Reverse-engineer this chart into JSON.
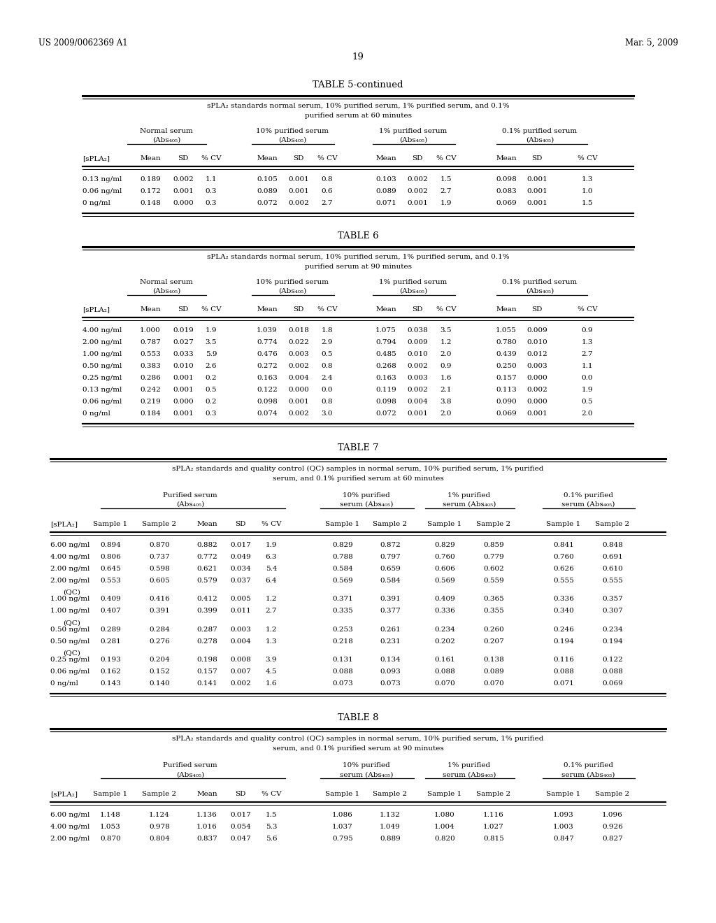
{
  "header_left": "US 2009/0062369 A1",
  "header_right": "Mar. 5, 2009",
  "page_number": "19",
  "background_color": "#ffffff",
  "table5c_title": "TABLE 5-continued",
  "table5c_subtitle1": "sPLA₂ standards normal serum, 10% purified serum, 1% purified serum, and 0.1%",
  "table5c_subtitle2": "purified serum at 60 minutes",
  "table5c_rows": [
    [
      "0.13 ng/ml",
      "0.189",
      "0.002",
      "1.1",
      "0.105",
      "0.001",
      "0.8",
      "0.103",
      "0.002",
      "1.5",
      "0.098",
      "0.001",
      "1.3"
    ],
    [
      "0.06 ng/ml",
      "0.172",
      "0.001",
      "0.3",
      "0.089",
      "0.001",
      "0.6",
      "0.089",
      "0.002",
      "2.7",
      "0.083",
      "0.001",
      "1.0"
    ],
    [
      "0 ng/ml",
      "0.148",
      "0.000",
      "0.3",
      "0.072",
      "0.002",
      "2.7",
      "0.071",
      "0.001",
      "1.9",
      "0.069",
      "0.001",
      "1.5"
    ]
  ],
  "table6_title": "TABLE 6",
  "table6_subtitle1": "sPLA₂ standards normal serum, 10% purified serum, 1% purified serum, and 0.1%",
  "table6_subtitle2": "purified serum at 90 minutes",
  "table6_rows": [
    [
      "4.00 ng/ml",
      "1.000",
      "0.019",
      "1.9",
      "1.039",
      "0.018",
      "1.8",
      "1.075",
      "0.038",
      "3.5",
      "1.055",
      "0.009",
      "0.9"
    ],
    [
      "2.00 ng/ml",
      "0.787",
      "0.027",
      "3.5",
      "0.774",
      "0.022",
      "2.9",
      "0.794",
      "0.009",
      "1.2",
      "0.780",
      "0.010",
      "1.3"
    ],
    [
      "1.00 ng/ml",
      "0.553",
      "0.033",
      "5.9",
      "0.476",
      "0.003",
      "0.5",
      "0.485",
      "0.010",
      "2.0",
      "0.439",
      "0.012",
      "2.7"
    ],
    [
      "0.50 ng/ml",
      "0.383",
      "0.010",
      "2.6",
      "0.272",
      "0.002",
      "0.8",
      "0.268",
      "0.002",
      "0.9",
      "0.250",
      "0.003",
      "1.1"
    ],
    [
      "0.25 ng/ml",
      "0.286",
      "0.001",
      "0.2",
      "0.163",
      "0.004",
      "2.4",
      "0.163",
      "0.003",
      "1.6",
      "0.157",
      "0.000",
      "0.0"
    ],
    [
      "0.13 ng/ml",
      "0.242",
      "0.001",
      "0.5",
      "0.122",
      "0.000",
      "0.0",
      "0.119",
      "0.002",
      "2.1",
      "0.113",
      "0.002",
      "1.9"
    ],
    [
      "0.06 ng/ml",
      "0.219",
      "0.000",
      "0.2",
      "0.098",
      "0.001",
      "0.8",
      "0.098",
      "0.004",
      "3.8",
      "0.090",
      "0.000",
      "0.5"
    ],
    [
      "0 ng/ml",
      "0.184",
      "0.001",
      "0.3",
      "0.074",
      "0.002",
      "3.0",
      "0.072",
      "0.001",
      "2.0",
      "0.069",
      "0.001",
      "2.0"
    ]
  ],
  "table7_title": "TABLE 7",
  "table7_subtitle1": "sPLA₂ standards and quality control (QC) samples in normal serum, 10% purified serum, 1% purified",
  "table7_subtitle2": "serum, and 0.1% purified serum at 60 minutes",
  "table7_rows": [
    [
      "6.00 ng/ml",
      "0.894",
      "0.870",
      "0.882",
      "0.017",
      "1.9",
      "0.829",
      "0.872",
      "0.829",
      "0.859",
      "0.841",
      "0.848"
    ],
    [
      "4.00 ng/ml",
      "0.806",
      "0.737",
      "0.772",
      "0.049",
      "6.3",
      "0.788",
      "0.797",
      "0.760",
      "0.779",
      "0.760",
      "0.691"
    ],
    [
      "2.00 ng/ml",
      "0.645",
      "0.598",
      "0.621",
      "0.034",
      "5.4",
      "0.584",
      "0.659",
      "0.606",
      "0.602",
      "0.626",
      "0.610"
    ],
    [
      "2.00 ng/ml",
      "0.553",
      "0.605",
      "0.579",
      "0.037",
      "6.4",
      "0.569",
      "0.584",
      "0.569",
      "0.559",
      "0.555",
      "0.555",
      "QC"
    ],
    [
      "1.00 ng/ml",
      "0.409",
      "0.416",
      "0.412",
      "0.005",
      "1.2",
      "0.371",
      "0.391",
      "0.409",
      "0.365",
      "0.336",
      "0.357"
    ],
    [
      "1.00 ng/ml",
      "0.407",
      "0.391",
      "0.399",
      "0.011",
      "2.7",
      "0.335",
      "0.377",
      "0.336",
      "0.355",
      "0.340",
      "0.307",
      "QC"
    ],
    [
      "0.50 ng/ml",
      "0.289",
      "0.284",
      "0.287",
      "0.003",
      "1.2",
      "0.253",
      "0.261",
      "0.234",
      "0.260",
      "0.246",
      "0.234"
    ],
    [
      "0.50 ng/ml",
      "0.281",
      "0.276",
      "0.278",
      "0.004",
      "1.3",
      "0.218",
      "0.231",
      "0.202",
      "0.207",
      "0.194",
      "0.194",
      "QC"
    ],
    [
      "0.25 ng/ml",
      "0.193",
      "0.204",
      "0.198",
      "0.008",
      "3.9",
      "0.131",
      "0.134",
      "0.161",
      "0.138",
      "0.116",
      "0.122"
    ],
    [
      "0.06 ng/ml",
      "0.162",
      "0.152",
      "0.157",
      "0.007",
      "4.5",
      "0.088",
      "0.093",
      "0.088",
      "0.089",
      "0.088",
      "0.088"
    ],
    [
      "0 ng/ml",
      "0.143",
      "0.140",
      "0.141",
      "0.002",
      "1.6",
      "0.073",
      "0.073",
      "0.070",
      "0.070",
      "0.071",
      "0.069"
    ]
  ],
  "table8_title": "TABLE 8",
  "table8_subtitle1": "sPLA₂ standards and quality control (QC) samples in normal serum, 10% purified serum, 1% purified",
  "table8_subtitle2": "serum, and 0.1% purified serum at 90 minutes",
  "table8_rows": [
    [
      "6.00 ng/ml",
      "1.148",
      "1.124",
      "1.136",
      "0.017",
      "1.5",
      "1.086",
      "1.132",
      "1.080",
      "1.116",
      "1.093",
      "1.096"
    ],
    [
      "4.00 ng/ml",
      "1.053",
      "0.978",
      "1.016",
      "0.054",
      "5.3",
      "1.037",
      "1.049",
      "1.004",
      "1.027",
      "1.003",
      "0.926"
    ],
    [
      "2.00 ng/ml",
      "0.870",
      "0.804",
      "0.837",
      "0.047",
      "5.6",
      "0.795",
      "0.889",
      "0.820",
      "0.815",
      "0.847",
      "0.827"
    ]
  ]
}
